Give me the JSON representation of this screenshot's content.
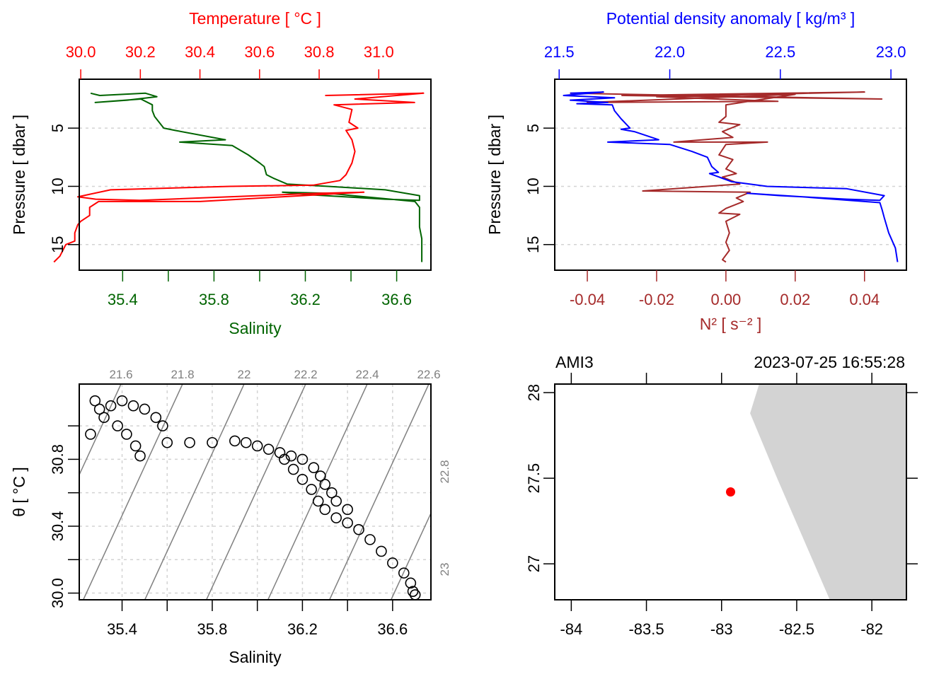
{
  "colors": {
    "temperature": "#ff0000",
    "salinity": "#006400",
    "density": "#0000ff",
    "n2": "#a52a2a",
    "grid": "#d3d3d3",
    "isopycnal": "#808080",
    "land": "#d3d3d3",
    "station": "#ff0000",
    "axis": "#000000"
  },
  "chart_data": [
    {
      "id": "profile-ts",
      "type": "line",
      "title": "Temperature [ °C ]",
      "top_axis": {
        "label": "Temperature [ °C ]",
        "ticks": [
          "30.0",
          "30.2",
          "30.4",
          "30.6",
          "30.8",
          "31.0"
        ],
        "range": [
          29.995,
          31.175
        ]
      },
      "bottom_axis": {
        "label": "Salinity",
        "ticks": [
          "35.4",
          "35.8",
          "36.2",
          "36.6"
        ],
        "minor_ticks": [
          35.6,
          36.0,
          36.4
        ],
        "range": [
          35.21,
          36.75
        ]
      },
      "ylabel": "Pressure [ dbar ]",
      "yticks": [
        "5",
        "10",
        "15"
      ],
      "ylim": [
        17.2,
        0.8
      ],
      "grid": "horizontal-dashed",
      "series": [
        {
          "name": "Temperature",
          "axis": "top",
          "points": [
            [
              30.82,
              2.2
            ],
            [
              31.15,
              2.0
            ],
            [
              30.92,
              2.5
            ],
            [
              31.12,
              2.8
            ],
            [
              30.85,
              3.0
            ],
            [
              30.91,
              3.4
            ],
            [
              30.9,
              4.5
            ],
            [
              30.93,
              5.0
            ],
            [
              30.89,
              5.2
            ],
            [
              30.91,
              6.0
            ],
            [
              30.92,
              7.0
            ],
            [
              30.91,
              8.0
            ],
            [
              30.89,
              9.0
            ],
            [
              30.87,
              9.5
            ],
            [
              30.78,
              9.9
            ],
            [
              30.5,
              10.0
            ],
            [
              30.1,
              10.3
            ],
            [
              29.99,
              10.9
            ],
            [
              30.05,
              11.1
            ],
            [
              30.2,
              11.2
            ],
            [
              30.8,
              10.6
            ],
            [
              30.95,
              10.5
            ],
            [
              30.4,
              11.3
            ],
            [
              30.06,
              11.3
            ],
            [
              30.03,
              11.8
            ],
            [
              30.03,
              12.5
            ],
            [
              30.0,
              13.0
            ],
            [
              29.99,
              13.3
            ],
            [
              29.98,
              14.0
            ],
            [
              29.98,
              14.7
            ],
            [
              29.95,
              15.0
            ],
            [
              29.93,
              16.0
            ],
            [
              29.91,
              16.5
            ]
          ]
        },
        {
          "name": "Salinity",
          "axis": "bottom",
          "points": [
            [
              35.26,
              2.0
            ],
            [
              35.3,
              2.2
            ],
            [
              35.5,
              2.0
            ],
            [
              35.55,
              2.3
            ],
            [
              35.42,
              2.6
            ],
            [
              35.28,
              2.8
            ],
            [
              35.48,
              2.5
            ],
            [
              35.53,
              3.0
            ],
            [
              35.53,
              3.5
            ],
            [
              35.54,
              4.0
            ],
            [
              35.58,
              5.0
            ],
            [
              35.63,
              5.2
            ],
            [
              35.85,
              6.0
            ],
            [
              35.65,
              6.2
            ],
            [
              35.88,
              6.5
            ],
            [
              35.95,
              7.3
            ],
            [
              36.0,
              8.0
            ],
            [
              36.02,
              8.3
            ],
            [
              36.03,
              9.0
            ],
            [
              36.06,
              9.3
            ],
            [
              36.12,
              9.8
            ],
            [
              36.3,
              10.0
            ],
            [
              36.55,
              10.3
            ],
            [
              36.7,
              10.8
            ],
            [
              36.7,
              11.2
            ],
            [
              36.55,
              11.1
            ],
            [
              36.2,
              10.7
            ],
            [
              36.1,
              10.5
            ],
            [
              36.3,
              10.6
            ],
            [
              36.68,
              11.3
            ],
            [
              36.7,
              11.8
            ],
            [
              36.7,
              12.5
            ],
            [
              36.7,
              13.5
            ],
            [
              36.71,
              14.5
            ],
            [
              36.71,
              15.5
            ],
            [
              36.71,
              16.5
            ]
          ]
        }
      ]
    },
    {
      "id": "profile-density",
      "type": "line",
      "top_axis": {
        "label": "Potential density anomaly [ kg/m³ ]",
        "ticks": [
          "21.5",
          "22.0",
          "22.5",
          "23.0"
        ],
        "range": [
          21.48,
          23.07
        ]
      },
      "bottom_axis": {
        "label": "N² [ s⁻² ]",
        "ticks": [
          "-0.04",
          "-0.02",
          "0.00",
          "0.02",
          "0.04"
        ],
        "range": [
          -0.0494,
          0.0521
        ]
      },
      "ylabel": "Pressure [ dbar ]",
      "yticks": [
        "5",
        "10",
        "15"
      ],
      "ylim": [
        17.2,
        0.8
      ],
      "grid": "horizontal-dashed",
      "series": [
        {
          "name": "Potential density anomaly",
          "axis": "top",
          "points": [
            [
              21.55,
              2.0
            ],
            [
              21.7,
              1.9
            ],
            [
              21.52,
              2.2
            ],
            [
              21.75,
              2.4
            ],
            [
              21.55,
              2.6
            ],
            [
              21.72,
              2.8
            ],
            [
              21.58,
              2.9
            ],
            [
              21.74,
              3.0
            ],
            [
              21.75,
              3.5
            ],
            [
              21.78,
              4.2
            ],
            [
              21.82,
              5.0
            ],
            [
              21.78,
              5.1
            ],
            [
              21.84,
              5.3
            ],
            [
              21.95,
              6.0
            ],
            [
              21.72,
              6.2
            ],
            [
              22.0,
              6.4
            ],
            [
              22.1,
              7.0
            ],
            [
              22.17,
              7.5
            ],
            [
              22.19,
              8.3
            ],
            [
              22.22,
              8.8
            ],
            [
              22.18,
              8.9
            ],
            [
              22.28,
              9.6
            ],
            [
              22.44,
              10.0
            ],
            [
              22.8,
              10.2
            ],
            [
              22.97,
              10.8
            ],
            [
              22.95,
              11.2
            ],
            [
              22.8,
              11.1
            ],
            [
              22.5,
              10.8
            ],
            [
              22.35,
              10.6
            ],
            [
              22.6,
              10.9
            ],
            [
              22.95,
              11.4
            ],
            [
              22.96,
              12.0
            ],
            [
              22.97,
              12.7
            ],
            [
              22.99,
              14.0
            ],
            [
              23.02,
              15.3
            ],
            [
              23.03,
              16.5
            ]
          ]
        },
        {
          "name": "N2",
          "axis": "bottom",
          "points": [
            [
              -0.045,
              2.0
            ],
            [
              0.045,
              2.5
            ],
            [
              -0.03,
              2.2
            ],
            [
              0.04,
              1.9
            ],
            [
              -0.02,
              2.3
            ],
            [
              0.015,
              2.7
            ],
            [
              -0.04,
              2.8
            ],
            [
              0.02,
              2.1
            ],
            [
              0.0,
              3.0
            ],
            [
              0.0,
              4.0
            ],
            [
              -0.002,
              4.5
            ],
            [
              0.004,
              4.7
            ],
            [
              -0.001,
              5.3
            ],
            [
              0.002,
              5.8
            ],
            [
              -0.015,
              6.2
            ],
            [
              0.012,
              6.2
            ],
            [
              0.0,
              6.4
            ],
            [
              -0.002,
              7.3
            ],
            [
              0.002,
              7.7
            ],
            [
              0.0,
              8.5
            ],
            [
              0.003,
              8.9
            ],
            [
              -0.001,
              9.2
            ],
            [
              0.004,
              9.8
            ],
            [
              -0.024,
              10.4
            ],
            [
              0.007,
              10.5
            ],
            [
              0.003,
              11.0
            ],
            [
              0.005,
              11.3
            ],
            [
              0.0,
              11.9
            ],
            [
              -0.002,
              12.3
            ],
            [
              0.004,
              12.4
            ],
            [
              0.0,
              13.0
            ],
            [
              0.001,
              14.0
            ],
            [
              0.0,
              14.8
            ],
            [
              0.001,
              15.5
            ],
            [
              -0.001,
              16.3
            ],
            [
              0.0,
              16.5
            ]
          ]
        }
      ]
    },
    {
      "id": "ts-diagram",
      "type": "scatter",
      "xlabel": "Salinity",
      "ylabel": "θ [ °C ]",
      "xticks": [
        "35.4",
        "35.8",
        "36.2",
        "36.6"
      ],
      "yticks": [
        "30.0",
        "30.4",
        "30.8"
      ],
      "xlim": [
        35.21,
        36.77
      ],
      "ylim": [
        29.96,
        31.25
      ],
      "grid": "dashed",
      "isopycnal_labels_top": [
        "21.6",
        "21.8",
        "22",
        "22.2",
        "22.4",
        "22.6"
      ],
      "isopycnal_labels_right": [
        "22.8",
        "23"
      ],
      "points": [
        [
          35.28,
          31.15
        ],
        [
          35.3,
          31.1
        ],
        [
          35.35,
          31.12
        ],
        [
          35.4,
          31.15
        ],
        [
          35.45,
          31.12
        ],
        [
          35.5,
          31.1
        ],
        [
          35.55,
          31.05
        ],
        [
          35.58,
          31.0
        ],
        [
          35.32,
          31.05
        ],
        [
          35.38,
          31.0
        ],
        [
          35.42,
          30.95
        ],
        [
          35.46,
          30.88
        ],
        [
          35.48,
          30.82
        ],
        [
          35.26,
          30.95
        ],
        [
          35.6,
          30.9
        ],
        [
          35.7,
          30.9
        ],
        [
          35.8,
          30.9
        ],
        [
          35.9,
          30.91
        ],
        [
          35.95,
          30.9
        ],
        [
          36.0,
          30.88
        ],
        [
          36.05,
          30.86
        ],
        [
          36.1,
          30.84
        ],
        [
          36.15,
          30.82
        ],
        [
          36.2,
          30.8
        ],
        [
          36.25,
          30.75
        ],
        [
          36.28,
          30.7
        ],
        [
          36.3,
          30.65
        ],
        [
          36.33,
          30.6
        ],
        [
          36.35,
          30.55
        ],
        [
          36.4,
          30.5
        ],
        [
          36.12,
          30.8
        ],
        [
          36.16,
          30.74
        ],
        [
          36.2,
          30.68
        ],
        [
          36.24,
          30.62
        ],
        [
          36.27,
          30.55
        ],
        [
          36.3,
          30.5
        ],
        [
          36.35,
          30.45
        ],
        [
          36.4,
          30.42
        ],
        [
          36.45,
          30.38
        ],
        [
          36.5,
          30.32
        ],
        [
          36.55,
          30.25
        ],
        [
          36.6,
          30.18
        ],
        [
          36.65,
          30.12
        ],
        [
          36.68,
          30.06
        ],
        [
          36.69,
          30.01
        ],
        [
          36.7,
          29.99
        ]
      ]
    },
    {
      "id": "station-map",
      "type": "scatter",
      "station_label": "AMI3",
      "timestamp": "2023-07-25 16:55:28",
      "xticks": [
        "-84",
        "-83.5",
        "-83",
        "-82.5",
        "-82"
      ],
      "yticks": [
        "27",
        "27.5",
        "28"
      ],
      "xlim": [
        -84.11,
        -81.77
      ],
      "ylim": [
        26.79,
        28.05
      ],
      "station": {
        "lon": -82.94,
        "lat": 27.42
      },
      "land_polygon": [
        [
          -82.75,
          28.05
        ],
        [
          -82.81,
          27.88
        ],
        [
          -82.63,
          27.5
        ],
        [
          -82.28,
          26.79
        ],
        [
          -81.77,
          26.79
        ],
        [
          -81.77,
          28.05
        ]
      ]
    }
  ]
}
